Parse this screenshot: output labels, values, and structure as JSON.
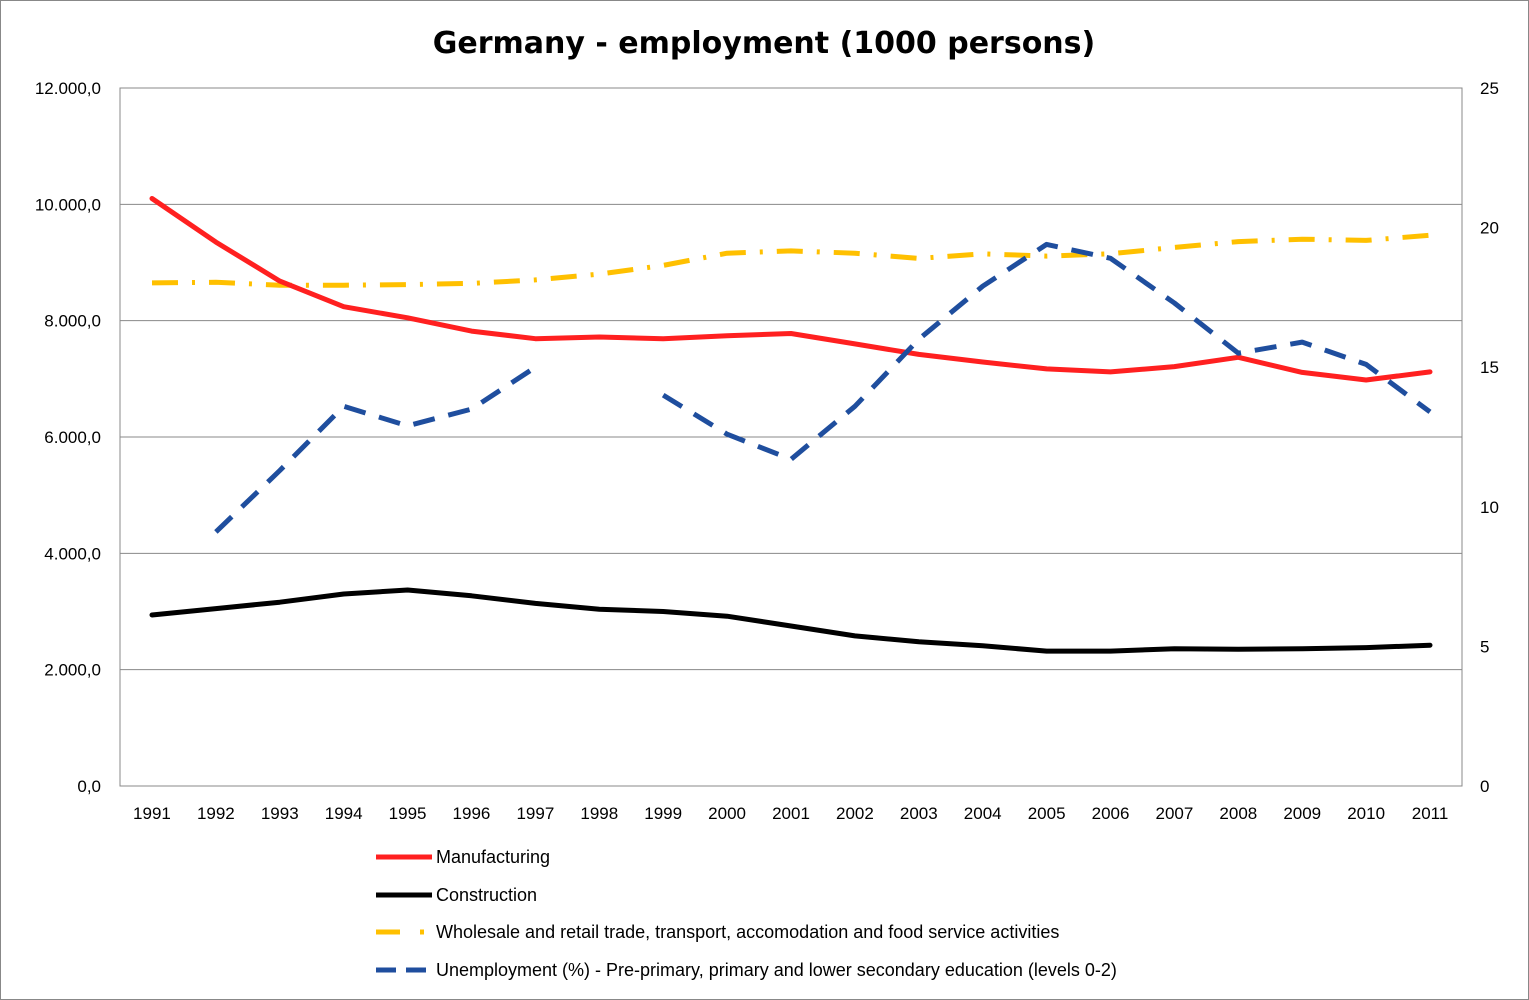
{
  "chart_data": {
    "type": "line",
    "title": "Germany - employment (1000 persons)",
    "categories": [
      "1991",
      "1992",
      "1993",
      "1994",
      "1995",
      "1996",
      "1997",
      "1998",
      "1999",
      "2000",
      "2001",
      "2002",
      "2003",
      "2004",
      "2005",
      "2006",
      "2007",
      "2008",
      "2009",
      "2010",
      "2011"
    ],
    "y_left": {
      "ylim": [
        0,
        12000
      ],
      "ticks": [
        0,
        2000,
        4000,
        6000,
        8000,
        10000,
        12000
      ],
      "tick_labels": [
        "0,0",
        "2.000,0",
        "4.000,0",
        "6.000,0",
        "8.000,0",
        "10.000,0",
        "12.000,0"
      ]
    },
    "y_right": {
      "ylim": [
        0,
        25
      ],
      "ticks": [
        0,
        5,
        10,
        15,
        20,
        25
      ],
      "tick_labels": [
        "0",
        "5",
        "10",
        "15",
        "20",
        "25"
      ]
    },
    "grid": true,
    "series": [
      {
        "name": "Manufacturing",
        "axis": "left",
        "color": "#ff2020",
        "style": "solid",
        "values": [
          10100,
          9350,
          8680,
          8240,
          8050,
          7820,
          7690,
          7720,
          7690,
          7740,
          7780,
          7600,
          7420,
          7290,
          7170,
          7120,
          7210,
          7370,
          7110,
          6980,
          7120
        ]
      },
      {
        "name": "Construction",
        "axis": "left",
        "color": "#000000",
        "style": "solid",
        "values": [
          2940,
          3050,
          3160,
          3300,
          3370,
          3270,
          3140,
          3040,
          3000,
          2920,
          2750,
          2580,
          2480,
          2410,
          2320,
          2320,
          2360,
          2350,
          2360,
          2380,
          2420
        ]
      },
      {
        "name": "Wholesale and retail trade, transport, accomodation and food service activities",
        "axis": "left",
        "color": "#ffc000",
        "style": "dashdot",
        "values": [
          8650,
          8660,
          8610,
          8610,
          8620,
          8640,
          8700,
          8800,
          8950,
          9160,
          9200,
          9160,
          9070,
          9150,
          9110,
          9150,
          9260,
          9360,
          9400,
          9380,
          9470
        ]
      },
      {
        "name": "Unemployment (%) - Pre-primary, primary and lower secondary education (levels 0-2)",
        "axis": "right",
        "color": "#1f4e9e",
        "style": "dashed",
        "values": [
          null,
          9.1,
          11.3,
          13.6,
          12.9,
          13.5,
          15.0,
          null,
          14.0,
          12.6,
          11.7,
          13.6,
          16.0,
          17.9,
          19.4,
          18.9,
          17.3,
          15.5,
          15.9,
          15.1,
          13.4
        ]
      }
    ]
  }
}
